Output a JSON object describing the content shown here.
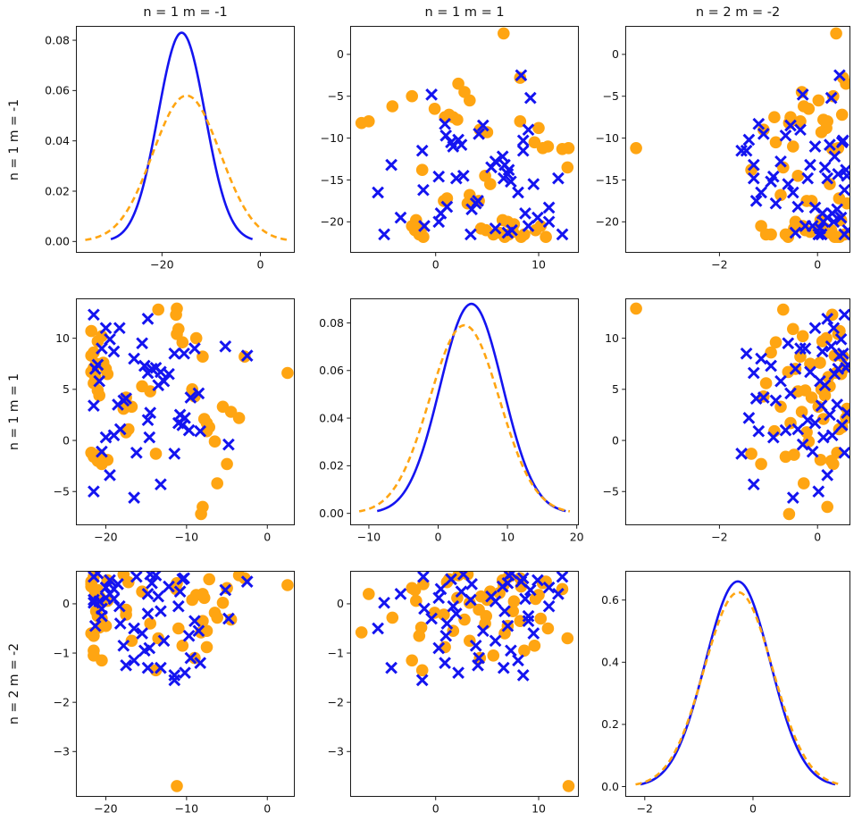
{
  "figure": {
    "background": "#ffffff",
    "colors": {
      "blue_series": "#1414f0",
      "orange_series": "#ffa512",
      "axis_line": "#1a1a1a",
      "tick_text": "#111111"
    }
  },
  "chart_data": {
    "type": "scatter",
    "grid": "3x3 pairplot, densities on diagonal, scatters off-diagonal",
    "variables": [
      "n = 1 m = -1",
      "n = 1 m = 1",
      "n = 2 m = -2"
    ],
    "samples": {
      "blue_x": {
        "v0": [
          -21.5,
          -20,
          -18.3,
          -19.5,
          -20.5,
          -19,
          -15.5,
          -14.8,
          -16.5,
          -21,
          -21.3,
          -20.8,
          -15.2,
          -14.3,
          -14.8,
          -13.8,
          -13.2,
          -12.2,
          -12.8,
          -13.5,
          -11.5,
          -10.3,
          -9,
          -5.2,
          -2.5,
          -9.5,
          -8.5,
          -21.5,
          -17.8,
          -18.5,
          -17.5,
          -14.5,
          -14.8,
          -10.8,
          -10.2,
          -11,
          -10.5,
          -9.7,
          -8.3,
          -19,
          -18.2,
          -20,
          -14.6,
          -16.2,
          -11.5,
          -20.5,
          -4.8,
          -19.5,
          -13.2,
          -21.5,
          -16.5
        ],
        "v1": [
          12.3,
          11,
          11,
          9.9,
          9,
          8.7,
          9.5,
          11.9,
          8,
          7.4,
          7,
          5.8,
          7.3,
          7,
          6.6,
          7.1,
          6.7,
          6.5,
          5.8,
          5.4,
          8.5,
          8.5,
          9,
          9.2,
          8.3,
          4.2,
          4.6,
          3.4,
          3.9,
          3.5,
          4.1,
          2.7,
          2,
          2.5,
          2.2,
          1.7,
          1.5,
          1,
          0.9,
          0.5,
          1.1,
          0.3,
          0.3,
          -1.2,
          -1.3,
          -1.1,
          -0.4,
          -3.4,
          -4.3,
          -5,
          -5.6
        ],
        "v2": [
          0.55,
          0.33,
          -0.05,
          0.48,
          -0.25,
          0.1,
          -0.6,
          0.2,
          -1.15,
          0.62,
          -0.45,
          0.05,
          -0.95,
          0.42,
          -1.3,
          0.58,
          -0.15,
          0.35,
          -0.75,
          0.15,
          -1.45,
          0.52,
          -0.35,
          0.28,
          0.45,
          -1.1,
          -0.55,
          0.08,
          -0.85,
          0.4,
          -1.25,
          0.6,
          -0.2,
          0.25,
          -1.4,
          -0.05,
          0.5,
          -0.65,
          -1.2,
          0.3,
          -0.4,
          0.12,
          -0.9,
          0.55,
          -1.55,
          -0.1,
          -0.3,
          0.2,
          -1.3,
          0.02,
          -0.5
        ]
      },
      "orange_o": {
        "v0": [
          -21.8,
          -20.5,
          -21,
          -21.5,
          -21.8,
          -21.2,
          -21.5,
          -21.8,
          -21.3,
          -21.5,
          -20.3,
          -20,
          -19.8,
          -21,
          -20.8,
          -13.5,
          -11.2,
          -11.3,
          -11,
          -11.2,
          -10.5,
          -8.8,
          -8,
          -2.8,
          2.5,
          -17.5,
          -17.8,
          -16.8,
          -15.5,
          -14.5,
          -9.3,
          -9,
          -17.2,
          -17.5,
          -7.8,
          -7.5,
          -7.2,
          -7.5,
          -5.5,
          -4.5,
          -3.5,
          -6.5,
          -21.8,
          -21.5,
          -21,
          -20.5,
          -19.8,
          -20.8,
          -13.8,
          -5,
          -6.2,
          -8,
          -8.2
        ],
        "v1": [
          10.7,
          10.2,
          9.7,
          8.6,
          8.3,
          7.5,
          7.1,
          6.7,
          6.2,
          5.6,
          7.6,
          7,
          6.5,
          4.9,
          4.4,
          12.8,
          12.9,
          12.3,
          10.9,
          10.4,
          9.6,
          10,
          8.2,
          8.2,
          6.6,
          4.2,
          3.1,
          3.3,
          5.3,
          4.8,
          5,
          4.3,
          1.1,
          0.8,
          2.1,
          1.7,
          1.3,
          0.9,
          3.3,
          2.8,
          2.2,
          -0.1,
          -1.2,
          -1.6,
          -2,
          -2.3,
          -1.9,
          -1.4,
          -1.3,
          -2.3,
          -4.2,
          -6.5,
          -7.2
        ],
        "v2": [
          0.45,
          -0.3,
          0.1,
          -0.95,
          0.35,
          -0.15,
          0.55,
          -0.6,
          0.22,
          -1.05,
          0.05,
          -0.45,
          0.48,
          -0.25,
          0.15,
          -0.7,
          -3.7,
          0.3,
          -0.5,
          0.42,
          -0.85,
          0.18,
          -0.35,
          0.52,
          0.38,
          -0.12,
          0.6,
          -0.75,
          0.25,
          -0.4,
          0.08,
          -1.1,
          0.44,
          -0.22,
          0.12,
          -0.55,
          0.5,
          -0.88,
          0.02,
          -0.32,
          0.58,
          -0.18,
          0.4,
          -0.65,
          0.28,
          -1.15,
          0.06,
          -0.48,
          -1.35,
          0.32,
          -0.28,
          0.2,
          -0.58
        ]
      }
    },
    "subplots": [
      {
        "type": "density",
        "title": "n = 1 m = -1",
        "ylabel": "n = 1 m = -1",
        "xlim": [
          -37.5,
          7.0
        ],
        "ylim": [
          -0.0045,
          0.0857
        ],
        "xtick_vals": [
          -20,
          0
        ],
        "xtick_labels": [
          "−20",
          "0"
        ],
        "ytick_vals": [
          0,
          0.02,
          0.04,
          0.06,
          0.08
        ],
        "ytick_labels": [
          "0.00",
          "0.02",
          "0.04",
          "0.06",
          "0.08"
        ],
        "curves": [
          {
            "series": "blue_x",
            "style": "solid",
            "mean": -16,
            "sd": 4.8,
            "peak": 0.083,
            "x_range": [
              -30.4,
              -1.6
            ]
          },
          {
            "series": "orange_o",
            "style": "dashed",
            "mean": -15,
            "sd": 6.85,
            "peak": 0.058,
            "x_range": [
              -35.6,
              5.6
            ]
          }
        ]
      },
      {
        "type": "scatter",
        "title": "n = 1 m = 1",
        "x_var": "v1",
        "y_var": "v0",
        "xlim": [
          -8.3,
          13.9
        ],
        "ylim": [
          -23.7,
          3.4
        ],
        "xtick_vals": [
          0,
          10
        ],
        "xtick_labels": [
          "0",
          "10"
        ],
        "ytick_vals": [
          0,
          -5,
          -10,
          -15,
          -20
        ],
        "ytick_labels": [
          "0",
          "−5",
          "−10",
          "−15",
          "−20"
        ]
      },
      {
        "type": "scatter",
        "title": "n = 2 m = -2",
        "x_var": "v2",
        "y_var": "v0",
        "xlim": [
          -3.92,
          0.67
        ],
        "ylim": [
          -23.7,
          3.4
        ],
        "xtick_vals": [
          -2,
          0
        ],
        "xtick_labels": [
          "−2",
          "0"
        ],
        "ytick_vals": [
          0,
          -5,
          -10,
          -15,
          -20
        ],
        "ytick_labels": [
          "0",
          "−5",
          "−10",
          "−15",
          "−20"
        ]
      },
      {
        "type": "scatter",
        "ylabel": "n = 1 m = 1",
        "x_var": "v0",
        "y_var": "v1",
        "xlim": [
          -23.7,
          3.4
        ],
        "ylim": [
          -8.3,
          13.9
        ],
        "xtick_vals": [
          -20,
          -10,
          0
        ],
        "xtick_labels": [
          "−20",
          "−10",
          "0"
        ],
        "ytick_vals": [
          10,
          5,
          0,
          -5
        ],
        "ytick_labels": [
          "10",
          "5",
          "0",
          "−5"
        ]
      },
      {
        "type": "density",
        "xlim": [
          -12.7,
          20.3
        ],
        "ylim": [
          -0.005,
          0.0903
        ],
        "xtick_vals": [
          -10,
          0,
          10,
          20
        ],
        "xtick_labels": [
          "−10",
          "0",
          "10",
          "20"
        ],
        "ytick_vals": [
          0,
          0.02,
          0.04,
          0.06,
          0.08
        ],
        "ytick_labels": [
          "0.00",
          "0.02",
          "0.04",
          "0.06",
          "0.08"
        ],
        "curves": [
          {
            "series": "blue_x",
            "style": "solid",
            "mean": 4.8,
            "sd": 4.53,
            "peak": 0.088,
            "x_range": [
              -8.8,
              18.4
            ]
          },
          {
            "series": "orange_o",
            "style": "dashed",
            "mean": 3.8,
            "sd": 5.05,
            "peak": 0.079,
            "x_range": [
              -11.4,
              19.0
            ]
          }
        ]
      },
      {
        "type": "scatter",
        "x_var": "v2",
        "y_var": "v1",
        "xlim": [
          -3.92,
          0.67
        ],
        "ylim": [
          -8.3,
          13.9
        ],
        "xtick_vals": [
          -2,
          0
        ],
        "xtick_labels": [
          "−2",
          "0"
        ],
        "ytick_vals": [
          10,
          5,
          0,
          -5
        ],
        "ytick_labels": [
          "10",
          "5",
          "0",
          "−5"
        ]
      },
      {
        "type": "scatter",
        "ylabel": "n = 2 m = -2",
        "x_var": "v0",
        "y_var": "v2",
        "xlim": [
          -23.7,
          3.4
        ],
        "ylim": [
          -3.92,
          0.67
        ],
        "xtick_vals": [
          -20,
          -10,
          0
        ],
        "xtick_labels": [
          "−20",
          "−10",
          "0"
        ],
        "ytick_vals": [
          0,
          -1,
          -2,
          -3
        ],
        "ytick_labels": [
          "0",
          "−1",
          "−2",
          "−3"
        ]
      },
      {
        "type": "scatter",
        "x_var": "v1",
        "y_var": "v2",
        "xlim": [
          -8.3,
          13.9
        ],
        "ylim": [
          -3.92,
          0.67
        ],
        "xtick_vals": [
          0,
          10
        ],
        "xtick_labels": [
          "0",
          "10"
        ],
        "ytick_vals": [
          0,
          -1,
          -2,
          -3
        ],
        "ytick_labels": [
          "0",
          "−1",
          "−2",
          "−3"
        ]
      },
      {
        "type": "density",
        "xlim": [
          -2.36,
          1.8
        ],
        "ylim": [
          -0.033,
          0.694
        ],
        "xtick_vals": [
          -2,
          0
        ],
        "xtick_labels": [
          "−2",
          "0"
        ],
        "ytick_vals": [
          0,
          0.2,
          0.4,
          0.6
        ],
        "ytick_labels": [
          "0.0",
          "0.2",
          "0.4",
          "0.6"
        ],
        "curves": [
          {
            "series": "blue_x",
            "style": "solid",
            "mean": -0.28,
            "sd": 0.6,
            "peak": 0.66,
            "x_range": [
              -2.08,
              1.52
            ]
          },
          {
            "series": "orange_o",
            "style": "dashed",
            "mean": -0.27,
            "sd": 0.632,
            "peak": 0.625,
            "x_range": [
              -2.17,
              1.63
            ]
          }
        ]
      }
    ]
  }
}
